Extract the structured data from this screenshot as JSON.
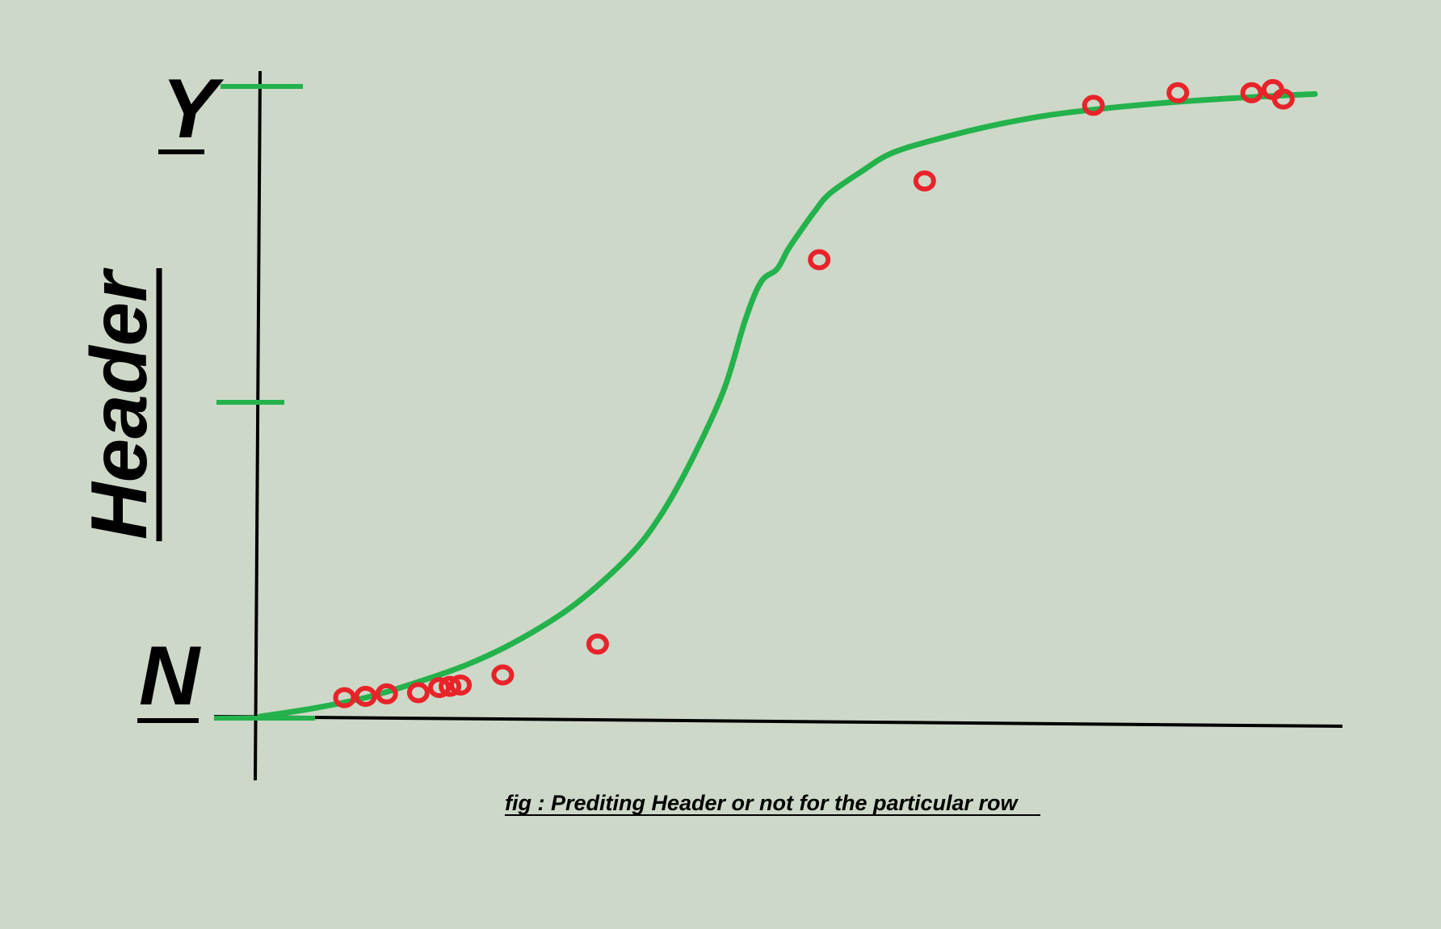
{
  "chart_data": {
    "type": "line",
    "title": "",
    "caption": "fig : Prediting Header or not for the particular row",
    "xlabel": "",
    "ylabel": "Header",
    "y_tick_labels": {
      "top": "Y",
      "bottom": "N"
    },
    "grid": false,
    "legend": "none",
    "xlim": [
      0,
      1
    ],
    "ylim": [
      0,
      1
    ],
    "series": [
      {
        "kind": "curve",
        "x": [
          0.0,
          0.05,
          0.1,
          0.15,
          0.2,
          0.25,
          0.3,
          0.35,
          0.38,
          0.41,
          0.44,
          0.46,
          0.475,
          0.49,
          0.5,
          0.51,
          0.525,
          0.54,
          0.57,
          0.6,
          0.65,
          0.7,
          0.75,
          0.8,
          0.85,
          0.9,
          0.95,
          1.0
        ],
        "y": [
          0.0,
          0.013,
          0.03,
          0.055,
          0.085,
          0.126,
          0.18,
          0.255,
          0.32,
          0.41,
          0.52,
          0.63,
          0.69,
          0.71,
          0.74,
          0.765,
          0.8,
          0.83,
          0.865,
          0.895,
          0.92,
          0.94,
          0.955,
          0.965,
          0.973,
          0.979,
          0.984,
          0.988
        ],
        "color": "#23b24b"
      },
      {
        "kind": "points",
        "x": [
          0.08,
          0.1,
          0.12,
          0.15,
          0.17,
          0.18,
          0.19,
          0.23,
          0.32,
          0.53,
          0.63,
          0.79,
          0.87,
          0.94,
          0.96,
          0.97
        ],
        "y": [
          0.03,
          0.032,
          0.036,
          0.038,
          0.046,
          0.048,
          0.05,
          0.066,
          0.115,
          0.725,
          0.85,
          0.97,
          0.99,
          0.99,
          0.995,
          0.98
        ],
        "color": "#e8232a"
      }
    ],
    "colors": {
      "background": "#cdd8c8",
      "curve": "#23b24b",
      "points": "#e8232a",
      "axes": "#000000",
      "ticks": "#23b24b"
    }
  }
}
